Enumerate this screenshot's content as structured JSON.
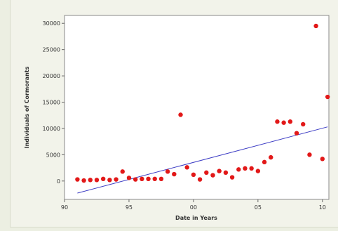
{
  "chart_data": {
    "type": "scatter",
    "title": "",
    "xlabel": "Date in Years",
    "ylabel": "Individuals of Cormorants",
    "xlim": [
      1990,
      2010.5
    ],
    "ylim": [
      -3500,
      31500
    ],
    "x_ticks": [
      1990,
      1995,
      2000,
      2005,
      2010
    ],
    "x_tick_labels": [
      "90",
      "95",
      "00",
      "05",
      "10"
    ],
    "y_ticks": [
      0,
      5000,
      10000,
      15000,
      20000,
      25000,
      30000
    ],
    "y_tick_labels": [
      "0",
      "5000",
      "10000",
      "15000",
      "20000",
      "25000",
      "30000"
    ],
    "grid": false,
    "point_color": "#e21818",
    "line_color": "#3b3bc4",
    "points": [
      [
        1991.0,
        300
      ],
      [
        1991.5,
        100
      ],
      [
        1992.0,
        200
      ],
      [
        1992.5,
        200
      ],
      [
        1993.0,
        400
      ],
      [
        1993.5,
        200
      ],
      [
        1994.0,
        300
      ],
      [
        1994.5,
        1800
      ],
      [
        1995.0,
        600
      ],
      [
        1995.5,
        300
      ],
      [
        1996.0,
        400
      ],
      [
        1996.5,
        400
      ],
      [
        1997.0,
        400
      ],
      [
        1997.5,
        400
      ],
      [
        1998.0,
        1800
      ],
      [
        1998.5,
        1300
      ],
      [
        1999.0,
        12600
      ],
      [
        1999.5,
        2600
      ],
      [
        2000.0,
        1200
      ],
      [
        2000.5,
        300
      ],
      [
        2001.0,
        1600
      ],
      [
        2001.5,
        1100
      ],
      [
        2002.0,
        1900
      ],
      [
        2002.5,
        1600
      ],
      [
        2003.0,
        700
      ],
      [
        2003.5,
        2200
      ],
      [
        2004.0,
        2400
      ],
      [
        2004.5,
        2400
      ],
      [
        2005.0,
        1900
      ],
      [
        2005.5,
        3600
      ],
      [
        2006.0,
        4500
      ],
      [
        2006.5,
        11300
      ],
      [
        2007.0,
        11100
      ],
      [
        2007.5,
        11300
      ],
      [
        2008.0,
        9100
      ],
      [
        2008.5,
        10800
      ],
      [
        2009.0,
        5000
      ],
      [
        2009.5,
        29500
      ],
      [
        2010.0,
        4200
      ],
      [
        2010.4,
        16000
      ]
    ],
    "fit_line": {
      "x": [
        1991.0,
        2010.4
      ],
      "y": [
        -2300,
        10300
      ]
    }
  }
}
